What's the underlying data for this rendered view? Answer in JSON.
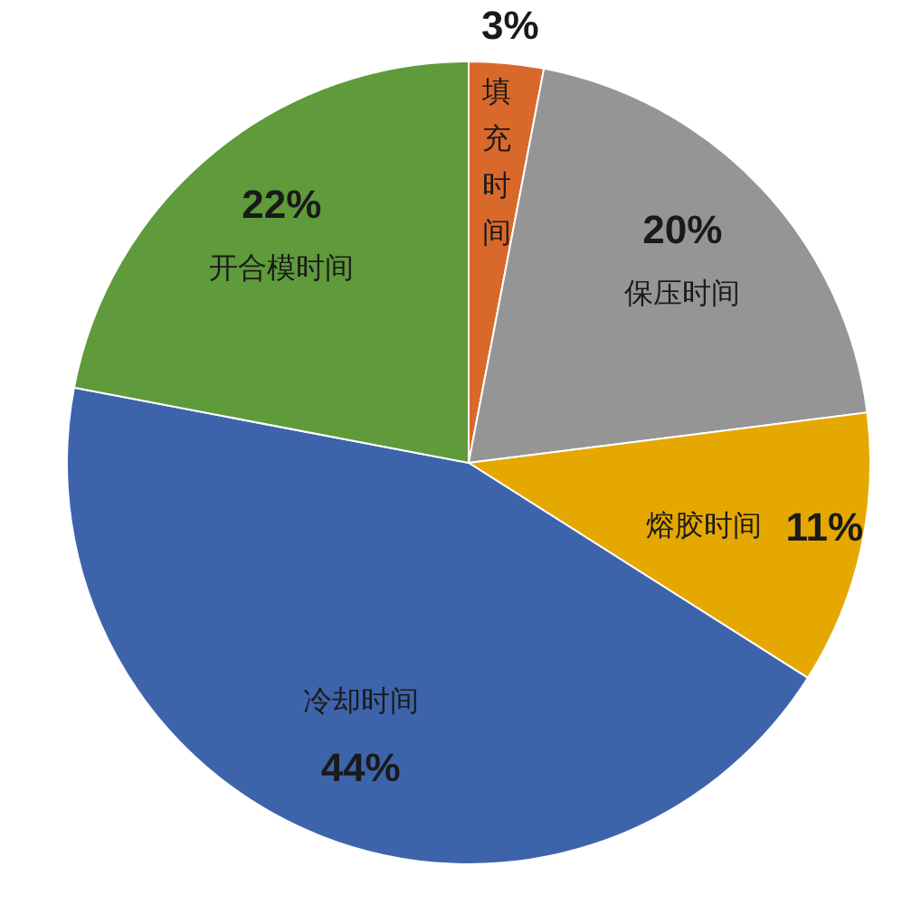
{
  "chart_data": {
    "type": "pie",
    "categories": [
      "填充时间",
      "保压时间",
      "熔胶时间",
      "冷却时间",
      "开合模时间"
    ],
    "values": [
      3,
      20,
      11,
      44,
      22
    ],
    "colors": [
      "#d9692b",
      "#959595",
      "#e5a800",
      "#3d64ab",
      "#5f9a3b"
    ],
    "value_labels": [
      "3%",
      "20%",
      "11%",
      "44%",
      "22%"
    ]
  }
}
